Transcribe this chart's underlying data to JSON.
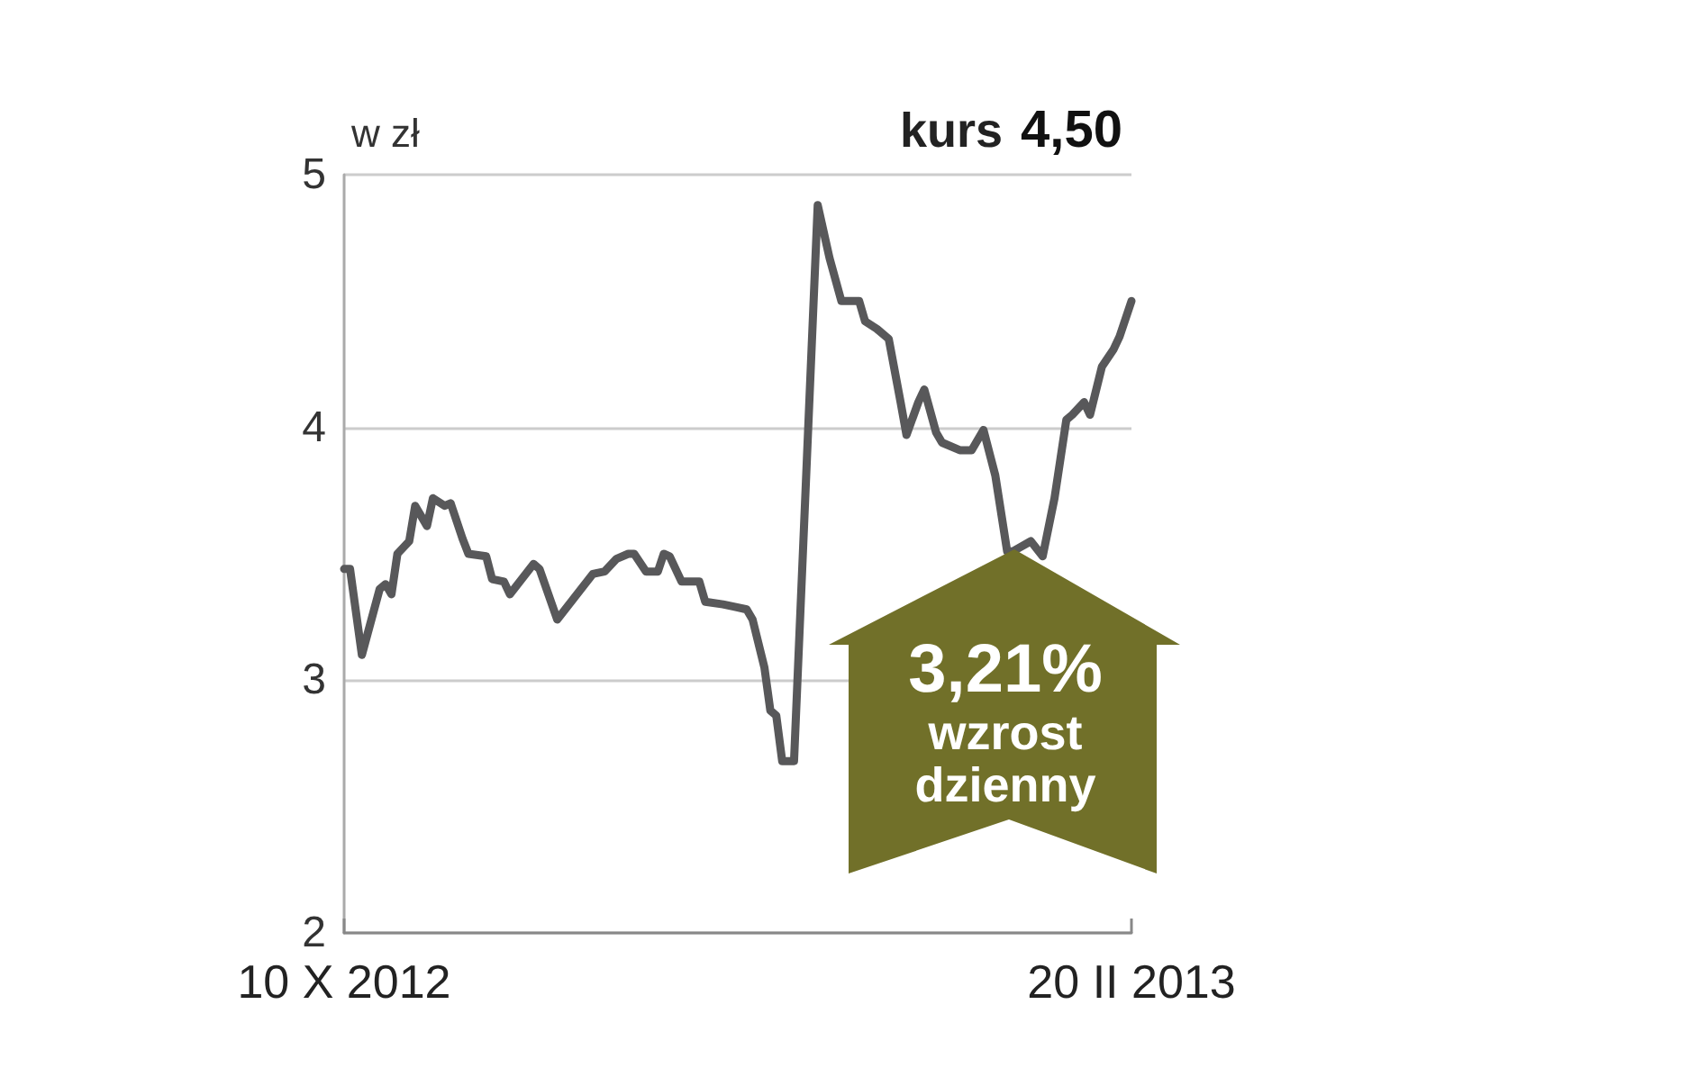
{
  "chart_data": {
    "type": "line",
    "title": "kurs",
    "subtitle": "4,50",
    "ylabel": "w zł",
    "annotations": [
      "3,21%",
      "wzrost dzienny"
    ],
    "x": [
      "2012-10-10",
      "2012-10-11",
      "2012-10-13",
      "2012-10-16",
      "2012-10-17",
      "2012-10-18",
      "2012-10-19",
      "2012-10-21",
      "2012-10-22",
      "2012-10-24",
      "2012-10-25",
      "2012-10-27",
      "2012-10-28",
      "2012-10-30",
      "2012-10-31",
      "2012-11-03",
      "2012-11-04",
      "2012-11-06",
      "2012-11-07",
      "2012-11-11",
      "2012-11-12",
      "2012-11-15",
      "2012-11-18",
      "2012-11-21",
      "2012-11-23",
      "2012-11-25",
      "2012-11-27",
      "2012-11-28",
      "2012-11-30",
      "2012-12-02",
      "2012-12-03",
      "2012-12-04",
      "2012-12-06",
      "2012-12-09",
      "2012-12-10",
      "2012-12-13",
      "2012-12-15",
      "2012-12-17",
      "2012-12-18",
      "2012-12-20",
      "2012-12-21",
      "2012-12-22",
      "2012-12-23",
      "2012-12-25",
      "2012-12-29",
      "2012-12-31",
      "2013-01-02",
      "2013-01-05",
      "2013-01-06",
      "2013-01-08",
      "2013-01-10",
      "2013-01-12",
      "2013-01-13",
      "2013-01-15",
      "2013-01-16",
      "2013-01-18",
      "2013-01-19",
      "2013-01-22",
      "2013-01-24",
      "2013-01-26",
      "2013-01-28",
      "2013-01-30",
      "2013-01-31",
      "2013-02-03",
      "2013-02-05",
      "2013-02-07",
      "2013-02-09",
      "2013-02-10",
      "2013-02-12",
      "2013-02-13",
      "2013-02-15",
      "2013-02-17",
      "2013-02-18",
      "2013-02-20"
    ],
    "series": [
      {
        "color": "#58585a",
        "values": [
          3.44,
          3.44,
          3.1,
          3.36,
          3.38,
          3.34,
          3.5,
          3.55,
          3.69,
          3.61,
          3.72,
          3.69,
          3.7,
          3.56,
          3.5,
          3.49,
          3.4,
          3.39,
          3.34,
          3.46,
          3.44,
          3.24,
          3.33,
          3.42,
          3.43,
          3.48,
          3.5,
          3.5,
          3.43,
          3.43,
          3.5,
          3.49,
          3.39,
          3.39,
          3.31,
          3.3,
          3.29,
          3.28,
          3.24,
          3.05,
          2.88,
          2.86,
          2.68,
          2.68,
          4.88,
          4.67,
          4.5,
          4.5,
          4.42,
          4.39,
          4.35,
          4.1,
          3.97,
          4.1,
          4.15,
          3.98,
          3.94,
          3.91,
          3.91,
          3.99,
          3.81,
          3.51,
          3.51,
          3.55,
          3.49,
          3.72,
          4.03,
          4.05,
          4.1,
          4.05,
          4.24,
          4.31,
          4.36,
          4.5
        ]
      }
    ],
    "xlim": [
      "2012-10-10",
      "2013-02-20"
    ],
    "xticks": [
      {
        "value": "2012-10-10",
        "label": "10 X 2012"
      },
      {
        "value": "2013-02-20",
        "label": "20 II 2013"
      }
    ],
    "ylim": [
      2,
      5
    ],
    "yticks": [
      2,
      3,
      4,
      5
    ],
    "grid": "y",
    "marker": "none",
    "line_style": "solid"
  }
}
